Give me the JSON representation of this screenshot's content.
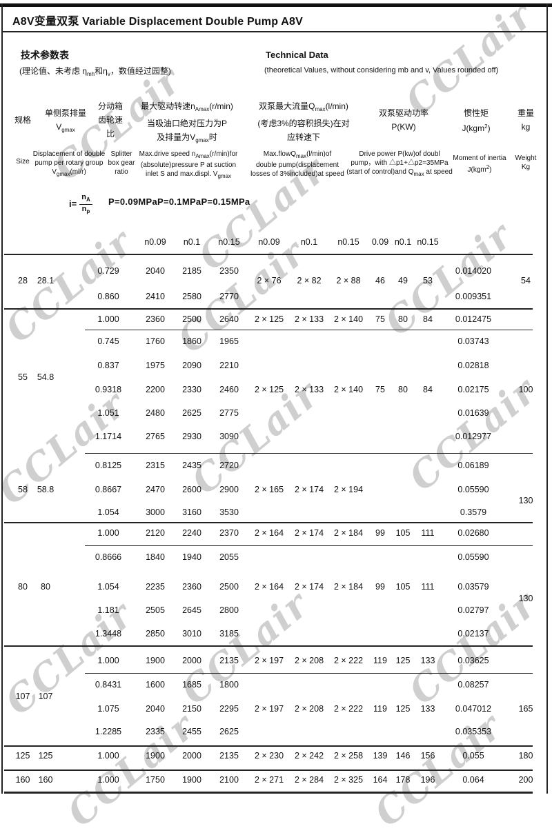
{
  "title": "A8V变量双泵  Variable Displacement Double Pump A8V",
  "intro": {
    "cn_title": "技术参数表",
    "cn_note_html": "(理论值、未考虑 η<sub>mh</sub>和η<sub>v</sub>，数值经过园整)",
    "en_title": "Technical Data",
    "en_note": "(theoretical Values, without considering mb and v, Values rounded off)"
  },
  "headers_cn": {
    "size": "规格",
    "displacement_html": "单侧泵排量\nV<sub>gmax</sub>",
    "ratio_html": "分动箱\n齿轮速\n比",
    "speed_html": "最大驱动转速n<sub>Amax</sub>(r/min)\n当吸油口绝对压力为P\n及排量为V<sub>gmax</sub>时",
    "flow_html": "双泵最大流量Q<sub>max</sub>(l/min)\n(考虑3%的容积损失)在对\n应转速下",
    "power_html": "双泵驱动功率\nP(KW)",
    "inertia_html": "惯性矩\nJ(kgm<sup>2</sup>)",
    "weight_html": "重量\nkg"
  },
  "headers_en": {
    "size": "Size",
    "displacement_html": "Displacement of double\npump per rotary group\nV<sub>gmax</sub>(ml/r)",
    "ratio_html": "Splitter\nbox gear\nratio",
    "speed_html": "Max.drive speed n<sub>Amax</sub>(r/min)for\n(absolute)pressure P at suction\ninlet S and max.displ.  V<sub>gmax</sub>",
    "flow_html": "Max.flowQ<sub>max</sub>(l/min)of\ndouble pump(displacement\nlosses of 3%included)at speed",
    "power_html": "Drive power P(kw)of doubl\npump，with △p1+△p2=35MPa\n(start of control)and Q<sub>max</sub> at speed",
    "inertia_html": "Moment of inertia\nJ(kgm<sup>2</sup>)",
    "weight_html": "Weight\nKg"
  },
  "formula": {
    "lhs": "i=",
    "numerator_html": "n<sub>A</sub>",
    "denominator_html": "n<sub>p</sub>",
    "pressures": "P=0.09MPaP=0.1MPaP=0.15MPa"
  },
  "subheaders": [
    "n0.09",
    "n0.1",
    "n0.15",
    "n0.09",
    "n0.1",
    "n0.15",
    "0.09",
    "n0.1",
    "n0.15"
  ],
  "watermark": "CCLair",
  "table": {
    "blocks": [
      {
        "size": "28",
        "displacement": "28.1",
        "weight": "54",
        "rows": [
          {
            "r": "0.729",
            "s1": "2040",
            "s2": "2185",
            "s3": "2350",
            "j": "0.014020"
          },
          {
            "r": "0.860",
            "s1": "2410",
            "s2": "2580",
            "s3": "2770",
            "j": "0.009351"
          }
        ],
        "mid": {
          "q1": "2 × 76",
          "q2": "2 × 82",
          "q3": "2 × 88",
          "p1": "46",
          "p2": "49",
          "p3": "53"
        }
      },
      {
        "size": "55",
        "displacement": "54.8",
        "weight": "100",
        "rows": [
          {
            "r": "1.000",
            "s1": "2360",
            "s2": "2500",
            "s3": "2640",
            "q1": "2 × 125",
            "q2": "2 × 133",
            "q3": "2 × 140",
            "p1": "75",
            "p2": "80",
            "p3": "84",
            "j": "0.012475"
          },
          {
            "r": "0.745",
            "s1": "1760",
            "s2": "1860",
            "s3": "1965",
            "j": "0.03743"
          },
          {
            "r": "0.837",
            "s1": "1975",
            "s2": "2090",
            "s3": "2210",
            "j": "0.02818"
          },
          {
            "r": "0.9318",
            "s1": "2200",
            "s2": "2330",
            "s3": "2460",
            "q1": "2 × 125",
            "q2": "2 × 133",
            "q3": "2 × 140",
            "p1": "75",
            "p2": "80",
            "p3": "84",
            "j": "0.02175"
          },
          {
            "r": "1.051",
            "s1": "2480",
            "s2": "2625",
            "s3": "2775",
            "j": "0.01639"
          },
          {
            "r": "1.1714",
            "s1": "2765",
            "s2": "2930",
            "s3": "3090",
            "j": "0.012977"
          }
        ]
      },
      {
        "size": "58",
        "displacement": "58.8",
        "weight": "130",
        "rows": [
          {
            "r": "0.8125",
            "s1": "2315",
            "s2": "2435",
            "s3": "2720",
            "j": "0.06189"
          },
          {
            "r": "0.8667",
            "s1": "2470",
            "s2": "2600",
            "s3": "2900",
            "q1": "2 × 165",
            "q2": "2 × 174",
            "q3": "2 × 194",
            "j": "0.05590"
          },
          {
            "r": "1.054",
            "s1": "3000",
            "s2": "3160",
            "s3": "3530",
            "j": "0.3579"
          }
        ]
      },
      {
        "size": "80",
        "displacement": "80",
        "weight": "130",
        "rows": [
          {
            "r": "1.000",
            "s1": "2120",
            "s2": "2240",
            "s3": "2370",
            "q1": "2 × 164",
            "q2": "2 × 174",
            "q3": "2 × 184",
            "p1": "99",
            "p2": "105",
            "p3": "111",
            "j": "0.02680"
          },
          {
            "r": "0.8666",
            "s1": "1840",
            "s2": "1940",
            "s3": "2055",
            "j": "0.05590"
          },
          {
            "r": "1.054",
            "s1": "2235",
            "s2": "2360",
            "s3": "2500",
            "q1": "2 × 164",
            "q2": "2 × 174",
            "q3": "2 × 184",
            "p1": "99",
            "p2": "105",
            "p3": "111",
            "j": "0.03579"
          },
          {
            "r": "1.181",
            "s1": "2505",
            "s2": "2645",
            "s3": "2800",
            "j": "0.02797"
          },
          {
            "r": "1.3448",
            "s1": "2850",
            "s2": "3010",
            "s3": "3185",
            "j": "0.02137"
          }
        ]
      },
      {
        "size": "107",
        "displacement": "107",
        "weight": "165",
        "rows": [
          {
            "r": "1.000",
            "s1": "1900",
            "s2": "2000",
            "s3": "2135",
            "q1": "2 × 197",
            "q2": "2 × 208",
            "q3": "2 × 222",
            "p1": "119",
            "p2": "125",
            "p3": "133",
            "j": "0.03625"
          },
          {
            "r": "0.8431",
            "s1": "1600",
            "s2": "1685",
            "s3": "1800",
            "j": "0.08257"
          },
          {
            "r": "1.075",
            "s1": "2040",
            "s2": "2150",
            "s3": "2295",
            "q1": "2 × 197",
            "q2": "2 × 208",
            "q3": "2 × 222",
            "p1": "119",
            "p2": "125",
            "p3": "133",
            "j": "0.047012"
          },
          {
            "r": "1.2285",
            "s1": "2335",
            "s2": "2455",
            "s3": "2625",
            "j": "0.035353"
          }
        ]
      },
      {
        "size": "125",
        "displacement": "125",
        "weight": "180",
        "rows": [
          {
            "r": "1.000",
            "s1": "1900",
            "s2": "2000",
            "s3": "2135",
            "q1": "2 × 230",
            "q2": "2 × 242",
            "q3": "2 × 258",
            "p1": "139",
            "p2": "146",
            "p3": "156",
            "j": "0.055"
          }
        ]
      },
      {
        "size": "160",
        "displacement": "160",
        "weight": "200",
        "rows": [
          {
            "r": "1.000",
            "s1": "1750",
            "s2": "1900",
            "s3": "2100",
            "q1": "2 × 271",
            "q2": "2 × 284",
            "q3": "2 × 325",
            "p1": "164",
            "p2": "178",
            "p3": "196",
            "j": "0.064"
          }
        ]
      }
    ]
  }
}
